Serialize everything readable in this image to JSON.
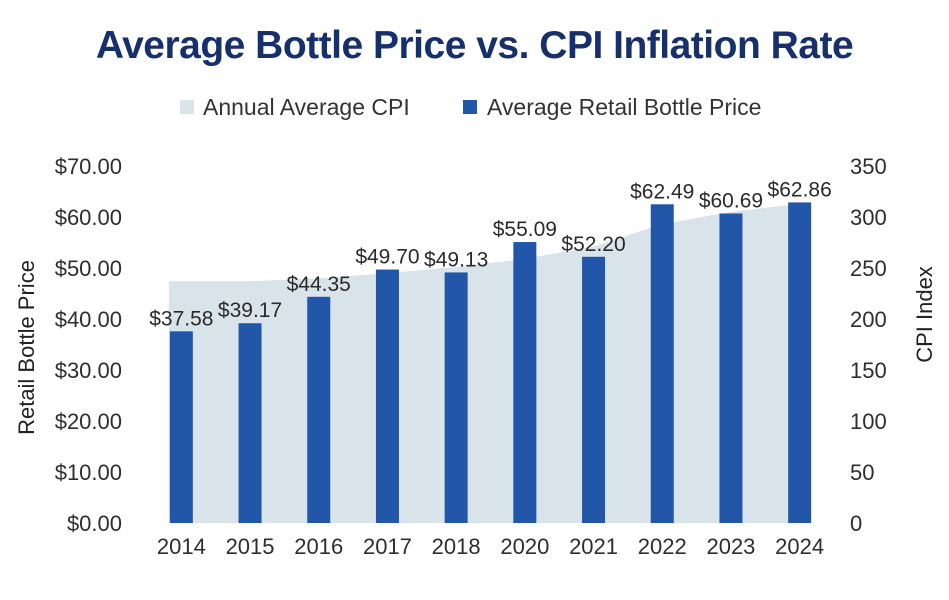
{
  "chart_data": {
    "type": "bar",
    "title": "Average Bottle Price vs. CPI Inflation Rate",
    "categories": [
      "2014",
      "2015",
      "2016",
      "2017",
      "2018",
      "2020",
      "2021",
      "2022",
      "2023",
      "2024"
    ],
    "series": [
      {
        "name": "Annual Average CPI",
        "type": "area",
        "axis": "right",
        "color": "#d8e3ea",
        "values": [
          237,
          237,
          240,
          245,
          251,
          259,
          271,
          293,
          305,
          313
        ]
      },
      {
        "name": "Average Retail Bottle Price",
        "type": "bar",
        "axis": "left",
        "color": "#2156a9",
        "values": [
          37.58,
          39.17,
          44.35,
          49.7,
          49.13,
          55.09,
          52.2,
          62.49,
          60.69,
          62.86
        ],
        "labels": [
          "$37.58",
          "$39.17",
          "$44.35",
          "$49.70",
          "$49.13",
          "$55.09",
          "$52.20",
          "$62.49",
          "$60.69",
          "$62.86"
        ]
      }
    ],
    "legend_position": "top-center",
    "ylabel": "Retail Bottle Price",
    "ylabel_right": "CPI Index",
    "ylim": [
      0,
      70
    ],
    "ylim_right": [
      0,
      350
    ],
    "yticks": [
      "$0.00",
      "$10.00",
      "$20.00",
      "$30.00",
      "$40.00",
      "$50.00",
      "$60.00",
      "$70.00"
    ],
    "yticks_right": [
      "0",
      "50",
      "100",
      "150",
      "200",
      "250",
      "300",
      "350"
    ],
    "grid": false
  }
}
